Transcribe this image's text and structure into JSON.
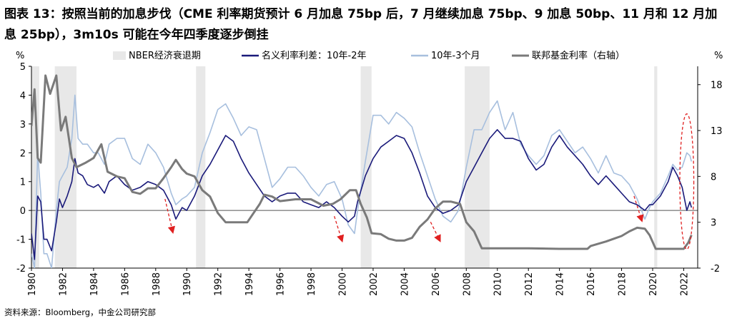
{
  "title": "图表 13：按照当前的加息步伐（CME 利率期货预计 6 月加息 75bp 后，7 月继续加息 75bp、9 加息 50bp、11 月和 12 月加息 25bp），3m10s 可能在今年四季度逐步倒挂",
  "source": "资料来源：Bloomberg，中金公司研究部",
  "chart_data": {
    "type": "line",
    "left_unit": "%",
    "right_unit": "%",
    "legend": [
      "NBER经济衰退期",
      "名义利率利差：10年-2年",
      "10年-3个月",
      "联邦基金利率（右轴）"
    ],
    "x_range": [
      1980.0,
      2022.9
    ],
    "x_ticks": [
      "1980",
      "1982",
      "1984",
      "1986",
      "1988",
      "1990",
      "1992",
      "1994",
      "1996",
      "1998",
      "2000",
      "2002",
      "2004",
      "2006",
      "2008",
      "2010",
      "2012",
      "2014",
      "2016",
      "2018",
      "2020",
      "2022"
    ],
    "ylim_left": [
      -2,
      5
    ],
    "yticks_left": [
      "5",
      "4",
      "3",
      "2",
      "1",
      "0",
      "-1",
      "-2"
    ],
    "ylim_right": [
      -2,
      20
    ],
    "yticks_right": [
      "18",
      "13",
      "8",
      "3",
      "-2"
    ],
    "recessions": [
      [
        1980.0,
        1980.5
      ],
      [
        1981.5,
        1982.9
      ],
      [
        1990.6,
        1991.2
      ],
      [
        2001.2,
        2001.9
      ],
      [
        2007.9,
        2009.5
      ],
      [
        2020.1,
        2020.3
      ]
    ],
    "series": [
      {
        "name": "名义利率利差：10年-2年",
        "color": "#1a1a7a",
        "points": [
          [
            1980.0,
            -0.8
          ],
          [
            1980.2,
            -1.7
          ],
          [
            1980.4,
            0.5
          ],
          [
            1980.6,
            0.3
          ],
          [
            1980.8,
            -1.0
          ],
          [
            1981.0,
            -1.0
          ],
          [
            1981.3,
            -1.4
          ],
          [
            1981.6,
            -0.4
          ],
          [
            1981.8,
            0.4
          ],
          [
            1982.0,
            0.1
          ],
          [
            1982.3,
            0.5
          ],
          [
            1982.6,
            1.0
          ],
          [
            1982.8,
            1.8
          ],
          [
            1983.0,
            1.3
          ],
          [
            1983.3,
            1.2
          ],
          [
            1983.6,
            0.9
          ],
          [
            1984.0,
            0.8
          ],
          [
            1984.3,
            0.9
          ],
          [
            1984.7,
            0.6
          ],
          [
            1985.0,
            1.0
          ],
          [
            1985.5,
            1.2
          ],
          [
            1986.0,
            0.9
          ],
          [
            1986.5,
            0.7
          ],
          [
            1987.0,
            0.8
          ],
          [
            1987.5,
            1.0
          ],
          [
            1988.0,
            0.9
          ],
          [
            1988.5,
            0.7
          ],
          [
            1989.0,
            0.2
          ],
          [
            1989.3,
            -0.3
          ],
          [
            1989.7,
            0.1
          ],
          [
            1990.0,
            0.0
          ],
          [
            1990.5,
            0.5
          ],
          [
            1991.0,
            1.2
          ],
          [
            1991.5,
            1.6
          ],
          [
            1992.0,
            2.1
          ],
          [
            1992.5,
            2.6
          ],
          [
            1993.0,
            2.4
          ],
          [
            1993.5,
            1.8
          ],
          [
            1994.0,
            1.3
          ],
          [
            1994.5,
            0.9
          ],
          [
            1995.0,
            0.5
          ],
          [
            1995.5,
            0.3
          ],
          [
            1996.0,
            0.5
          ],
          [
            1996.5,
            0.6
          ],
          [
            1997.0,
            0.6
          ],
          [
            1997.5,
            0.3
          ],
          [
            1998.0,
            0.2
          ],
          [
            1998.5,
            0.1
          ],
          [
            1999.0,
            0.3
          ],
          [
            1999.5,
            0.1
          ],
          [
            2000.0,
            -0.2
          ],
          [
            2000.4,
            -0.4
          ],
          [
            2000.8,
            -0.2
          ],
          [
            2001.0,
            0.3
          ],
          [
            2001.5,
            1.2
          ],
          [
            2002.0,
            1.8
          ],
          [
            2002.5,
            2.2
          ],
          [
            2003.0,
            2.4
          ],
          [
            2003.5,
            2.6
          ],
          [
            2004.0,
            2.5
          ],
          [
            2004.5,
            2.0
          ],
          [
            2005.0,
            1.3
          ],
          [
            2005.5,
            0.5
          ],
          [
            2006.0,
            0.1
          ],
          [
            2006.5,
            -0.1
          ],
          [
            2007.0,
            0.0
          ],
          [
            2007.5,
            0.2
          ],
          [
            2008.0,
            1.0
          ],
          [
            2008.5,
            1.5
          ],
          [
            2009.0,
            2.0
          ],
          [
            2009.5,
            2.5
          ],
          [
            2010.0,
            2.8
          ],
          [
            2010.5,
            2.5
          ],
          [
            2011.0,
            2.5
          ],
          [
            2011.5,
            2.4
          ],
          [
            2012.0,
            1.8
          ],
          [
            2012.5,
            1.4
          ],
          [
            2013.0,
            1.6
          ],
          [
            2013.5,
            2.2
          ],
          [
            2014.0,
            2.6
          ],
          [
            2014.5,
            2.2
          ],
          [
            2015.0,
            1.9
          ],
          [
            2015.5,
            1.6
          ],
          [
            2016.0,
            1.2
          ],
          [
            2016.5,
            0.9
          ],
          [
            2017.0,
            1.2
          ],
          [
            2017.5,
            0.9
          ],
          [
            2018.0,
            0.6
          ],
          [
            2018.5,
            0.3
          ],
          [
            2019.0,
            0.2
          ],
          [
            2019.5,
            0.0
          ],
          [
            2019.8,
            0.2
          ],
          [
            2020.0,
            0.2
          ],
          [
            2020.5,
            0.5
          ],
          [
            2021.0,
            1.0
          ],
          [
            2021.3,
            1.5
          ],
          [
            2021.6,
            1.2
          ],
          [
            2021.9,
            0.8
          ],
          [
            2022.2,
            0.0
          ],
          [
            2022.4,
            0.3
          ],
          [
            2022.5,
            0.1
          ]
        ]
      },
      {
        "name": "10年-3个月",
        "color": "#a7bfde",
        "points": [
          [
            1980.0,
            -1.5
          ],
          [
            1980.2,
            -2.0
          ],
          [
            1980.4,
            2.0
          ],
          [
            1980.6,
            0.6
          ],
          [
            1980.8,
            -1.5
          ],
          [
            1981.0,
            -1.5
          ],
          [
            1981.3,
            -2.0
          ],
          [
            1981.6,
            0.0
          ],
          [
            1981.8,
            1.0
          ],
          [
            1982.0,
            1.2
          ],
          [
            1982.3,
            1.5
          ],
          [
            1982.6,
            2.5
          ],
          [
            1982.8,
            4.0
          ],
          [
            1983.0,
            2.5
          ],
          [
            1983.3,
            2.3
          ],
          [
            1983.6,
            2.3
          ],
          [
            1984.0,
            2.0
          ],
          [
            1984.3,
            2.0
          ],
          [
            1984.7,
            1.6
          ],
          [
            1985.0,
            2.3
          ],
          [
            1985.5,
            2.5
          ],
          [
            1986.0,
            2.5
          ],
          [
            1986.5,
            1.8
          ],
          [
            1987.0,
            1.6
          ],
          [
            1987.5,
            2.3
          ],
          [
            1988.0,
            2.0
          ],
          [
            1988.5,
            1.5
          ],
          [
            1989.0,
            0.6
          ],
          [
            1989.3,
            0.2
          ],
          [
            1989.7,
            0.4
          ],
          [
            1990.0,
            0.5
          ],
          [
            1990.5,
            0.8
          ],
          [
            1991.0,
            2.0
          ],
          [
            1991.5,
            2.7
          ],
          [
            1992.0,
            3.5
          ],
          [
            1992.5,
            3.7
          ],
          [
            1993.0,
            3.2
          ],
          [
            1993.5,
            2.6
          ],
          [
            1994.0,
            2.9
          ],
          [
            1994.5,
            2.8
          ],
          [
            1995.0,
            1.8
          ],
          [
            1995.5,
            0.8
          ],
          [
            1996.0,
            1.1
          ],
          [
            1996.5,
            1.5
          ],
          [
            1997.0,
            1.5
          ],
          [
            1997.5,
            1.2
          ],
          [
            1998.0,
            0.8
          ],
          [
            1998.5,
            0.5
          ],
          [
            1999.0,
            0.9
          ],
          [
            1999.5,
            1.0
          ],
          [
            2000.0,
            0.4
          ],
          [
            2000.4,
            -0.5
          ],
          [
            2000.8,
            -0.8
          ],
          [
            2001.0,
            0.0
          ],
          [
            2001.5,
            1.7
          ],
          [
            2002.0,
            3.3
          ],
          [
            2002.5,
            3.3
          ],
          [
            2003.0,
            3.0
          ],
          [
            2003.5,
            3.4
          ],
          [
            2004.0,
            3.2
          ],
          [
            2004.5,
            2.9
          ],
          [
            2005.0,
            2.0
          ],
          [
            2005.5,
            1.2
          ],
          [
            2006.0,
            0.4
          ],
          [
            2006.5,
            -0.2
          ],
          [
            2007.0,
            -0.4
          ],
          [
            2007.5,
            0.0
          ],
          [
            2008.0,
            1.5
          ],
          [
            2008.5,
            2.8
          ],
          [
            2009.0,
            2.8
          ],
          [
            2009.5,
            3.4
          ],
          [
            2010.0,
            3.8
          ],
          [
            2010.5,
            2.8
          ],
          [
            2011.0,
            3.4
          ],
          [
            2011.5,
            2.3
          ],
          [
            2012.0,
            1.9
          ],
          [
            2012.5,
            1.6
          ],
          [
            2013.0,
            1.9
          ],
          [
            2013.5,
            2.6
          ],
          [
            2014.0,
            2.8
          ],
          [
            2014.5,
            2.4
          ],
          [
            2015.0,
            2.0
          ],
          [
            2015.5,
            2.2
          ],
          [
            2016.0,
            1.8
          ],
          [
            2016.5,
            1.3
          ],
          [
            2017.0,
            1.9
          ],
          [
            2017.5,
            1.3
          ],
          [
            2018.0,
            1.2
          ],
          [
            2018.5,
            0.9
          ],
          [
            2019.0,
            0.4
          ],
          [
            2019.5,
            -0.3
          ],
          [
            2019.8,
            0.1
          ],
          [
            2020.0,
            0.3
          ],
          [
            2020.5,
            0.6
          ],
          [
            2021.0,
            1.2
          ],
          [
            2021.3,
            1.6
          ],
          [
            2021.6,
            1.4
          ],
          [
            2021.9,
            1.5
          ],
          [
            2022.2,
            2.0
          ],
          [
            2022.4,
            1.9
          ],
          [
            2022.5,
            1.7
          ]
        ]
      },
      {
        "name": "联邦基金利率（右轴）",
        "color": "#7a7a7a",
        "points": [
          [
            1980.0,
            13.5
          ],
          [
            1980.2,
            17.5
          ],
          [
            1980.4,
            10.0
          ],
          [
            1980.6,
            9.5
          ],
          [
            1980.9,
            19.0
          ],
          [
            1981.2,
            17.0
          ],
          [
            1981.6,
            19.0
          ],
          [
            1981.9,
            13.0
          ],
          [
            1982.2,
            14.5
          ],
          [
            1982.6,
            10.0
          ],
          [
            1982.9,
            9.0
          ],
          [
            1983.5,
            9.5
          ],
          [
            1984.0,
            10.0
          ],
          [
            1984.5,
            11.5
          ],
          [
            1984.9,
            8.5
          ],
          [
            1985.5,
            8.0
          ],
          [
            1986.0,
            7.8
          ],
          [
            1986.5,
            6.3
          ],
          [
            1987.0,
            6.1
          ],
          [
            1987.5,
            6.7
          ],
          [
            1988.0,
            6.7
          ],
          [
            1988.5,
            7.8
          ],
          [
            1989.0,
            9.0
          ],
          [
            1989.3,
            9.8
          ],
          [
            1989.7,
            8.8
          ],
          [
            1990.0,
            8.3
          ],
          [
            1990.5,
            8.0
          ],
          [
            1991.0,
            6.5
          ],
          [
            1991.5,
            5.8
          ],
          [
            1992.0,
            4.0
          ],
          [
            1992.5,
            3.0
          ],
          [
            1993.0,
            3.0
          ],
          [
            1993.9,
            3.0
          ],
          [
            1994.3,
            4.0
          ],
          [
            1994.7,
            5.0
          ],
          [
            1995.0,
            6.0
          ],
          [
            1995.5,
            5.8
          ],
          [
            1996.0,
            5.3
          ],
          [
            1997.0,
            5.5
          ],
          [
            1998.0,
            5.5
          ],
          [
            1998.8,
            4.8
          ],
          [
            1999.4,
            5.0
          ],
          [
            1999.9,
            5.5
          ],
          [
            2000.5,
            6.5
          ],
          [
            2000.9,
            6.5
          ],
          [
            2001.2,
            5.0
          ],
          [
            2001.6,
            3.5
          ],
          [
            2001.9,
            1.8
          ],
          [
            2002.5,
            1.7
          ],
          [
            2003.0,
            1.2
          ],
          [
            2003.5,
            1.0
          ],
          [
            2004.0,
            1.0
          ],
          [
            2004.5,
            1.3
          ],
          [
            2005.0,
            2.5
          ],
          [
            2005.5,
            3.3
          ],
          [
            2006.0,
            4.5
          ],
          [
            2006.5,
            5.25
          ],
          [
            2007.0,
            5.25
          ],
          [
            2007.6,
            5.0
          ],
          [
            2008.0,
            3.0
          ],
          [
            2008.5,
            2.0
          ],
          [
            2009.0,
            0.15
          ],
          [
            2010.0,
            0.15
          ],
          [
            2012.0,
            0.15
          ],
          [
            2014.0,
            0.1
          ],
          [
            2015.8,
            0.1
          ],
          [
            2016.0,
            0.4
          ],
          [
            2017.0,
            0.9
          ],
          [
            2017.5,
            1.2
          ],
          [
            2018.0,
            1.5
          ],
          [
            2018.5,
            2.0
          ],
          [
            2019.0,
            2.4
          ],
          [
            2019.5,
            2.3
          ],
          [
            2019.8,
            1.6
          ],
          [
            2020.2,
            0.1
          ],
          [
            2021.0,
            0.1
          ],
          [
            2022.0,
            0.1
          ],
          [
            2022.3,
            0.8
          ],
          [
            2022.5,
            1.6
          ]
        ]
      }
    ],
    "annotation_ellipse": {
      "x_center": 2022.2,
      "y_center": 1.0,
      "x_half_span": 0.45,
      "y_half_span": 2.35
    },
    "annotation_arrows": [
      {
        "from": [
          1988.6,
          0.4
        ],
        "to": [
          1989.1,
          -0.75
        ]
      },
      {
        "from": [
          1999.5,
          -0.2
        ],
        "to": [
          2000.0,
          -1.05
        ]
      },
      {
        "from": [
          2005.7,
          -0.4
        ],
        "to": [
          2006.3,
          -1.05
        ]
      },
      {
        "from": [
          2018.8,
          0.5
        ],
        "to": [
          2019.3,
          -0.35
        ]
      }
    ]
  }
}
